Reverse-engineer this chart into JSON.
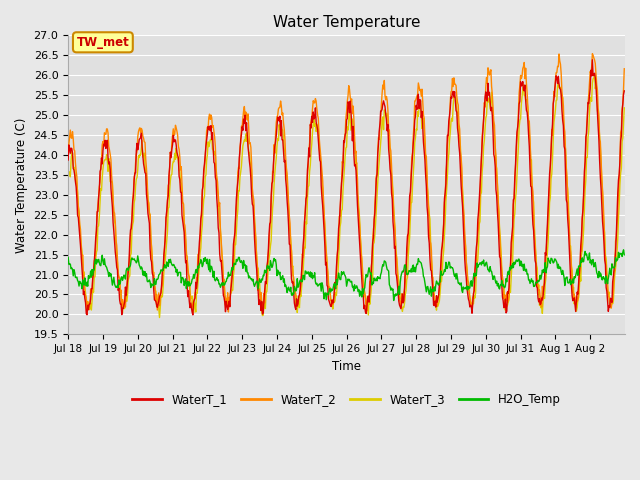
{
  "title": "Water Temperature",
  "ylabel": "Water Temperature (C)",
  "xlabel": "Time",
  "ylim": [
    19.5,
    27.0
  ],
  "yticks": [
    19.5,
    20.0,
    20.5,
    21.0,
    21.5,
    22.0,
    22.5,
    23.0,
    23.5,
    24.0,
    24.5,
    25.0,
    25.5,
    26.0,
    26.5,
    27.0
  ],
  "xtick_labels": [
    "Jul 18",
    "Jul 19",
    "Jul 20",
    "Jul 21",
    "Jul 22",
    "Jul 23",
    "Jul 24",
    "Jul 25",
    "Jul 26",
    "Jul 27",
    "Jul 28",
    "Jul 29",
    "Jul 30",
    "Jul 31",
    "Aug 1",
    "Aug 2"
  ],
  "colors": {
    "WaterT_1": "#dd0000",
    "WaterT_2": "#ff8800",
    "WaterT_3": "#ddcc00",
    "H2O_Temp": "#00bb00"
  },
  "annotation_box": {
    "text": "TW_met",
    "facecolor": "#ffff99",
    "edgecolor": "#cc8800",
    "textcolor": "#cc0000"
  },
  "fig_facecolor": "#e8e8e8",
  "axes_facecolor": "#e0e0e0",
  "grid_color": "#ffffff"
}
